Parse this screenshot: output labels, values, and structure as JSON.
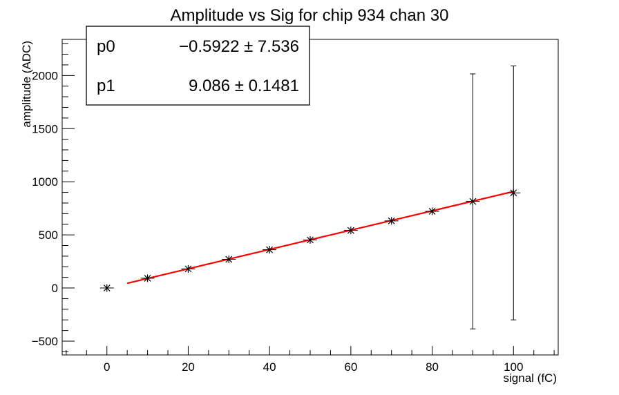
{
  "chart_data": {
    "type": "scatter",
    "title": "Amplitude vs Sig for chip 934 chan 30",
    "xlabel": "signal (fC)",
    "ylabel": "amplitude (ADC)",
    "xlim": [
      -11,
      111
    ],
    "ylim": [
      -630,
      2340
    ],
    "xticks": [
      0,
      20,
      40,
      60,
      80,
      100
    ],
    "xtick_labels": [
      "0",
      "20",
      "40",
      "60",
      "80",
      "100"
    ],
    "yticks": [
      -500,
      0,
      500,
      1000,
      1500,
      2000
    ],
    "ytick_labels": [
      "−500",
      "0",
      "500",
      "1000",
      "1500",
      "2000"
    ],
    "grid": false,
    "points": [
      {
        "x": 0,
        "y": 0,
        "yerr": 0
      },
      {
        "x": 10,
        "y": 92,
        "yerr": 0
      },
      {
        "x": 20,
        "y": 180,
        "yerr": 0
      },
      {
        "x": 30,
        "y": 270,
        "yerr": 0
      },
      {
        "x": 40,
        "y": 360,
        "yerr": 0
      },
      {
        "x": 50,
        "y": 452,
        "yerr": 0
      },
      {
        "x": 60,
        "y": 542,
        "yerr": 0
      },
      {
        "x": 70,
        "y": 632,
        "yerr": 0
      },
      {
        "x": 80,
        "y": 722,
        "yerr": 0
      },
      {
        "x": 90,
        "y": 815,
        "yerr": 1200
      },
      {
        "x": 100,
        "y": 895,
        "yerr": 1195
      }
    ],
    "fit": {
      "color": "#ff0000",
      "x_range": [
        5,
        100
      ],
      "params": [
        {
          "name": "p0",
          "value": -0.5922,
          "value_text": "−0.5922",
          "error_text": "7.536"
        },
        {
          "name": "p1",
          "value": 9.086,
          "value_text": "9.086",
          "error_text": "0.1481"
        }
      ],
      "pm_symbol": "±"
    },
    "stats_box_position": "top-left",
    "colors": {
      "points": "#000000",
      "fit": "#ff0000",
      "axes": "#000000"
    }
  }
}
